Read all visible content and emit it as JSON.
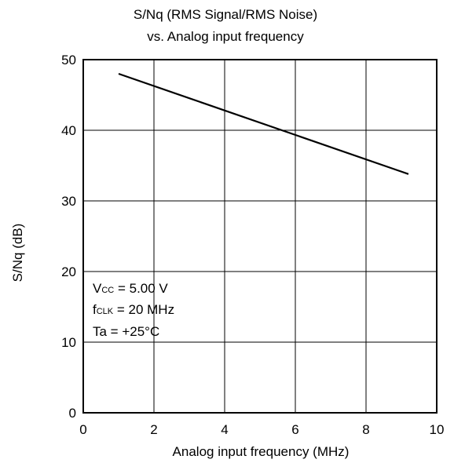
{
  "chart_data": {
    "type": "line",
    "title_line1": "S/Nq (RMS Signal/RMS Noise)",
    "title_line2": "vs. Analog input frequency",
    "xlabel": "Analog input frequency (MHz)",
    "ylabel": "S/Nq (dB)",
    "xlim": [
      0,
      10
    ],
    "ylim": [
      0,
      50
    ],
    "x_ticks": [
      "0",
      "2",
      "4",
      "6",
      "8",
      "10"
    ],
    "y_ticks": [
      "0",
      "10",
      "20",
      "30",
      "40",
      "50"
    ],
    "grid": true,
    "series": [
      {
        "x": [
          1.0,
          9.2
        ],
        "y": [
          48.0,
          33.8
        ]
      }
    ],
    "annotations": {
      "vcc_main": "V",
      "vcc_sub": "CC",
      "vcc_value": " = 5.00 V",
      "fclk_main": "f",
      "fclk_sub": "CLK",
      "fclk_value": " = 20 MHz",
      "ta": "Ta = +25°C"
    },
    "colors": {
      "line": "#000000",
      "grid": "#000000",
      "background": "#ffffff"
    }
  }
}
